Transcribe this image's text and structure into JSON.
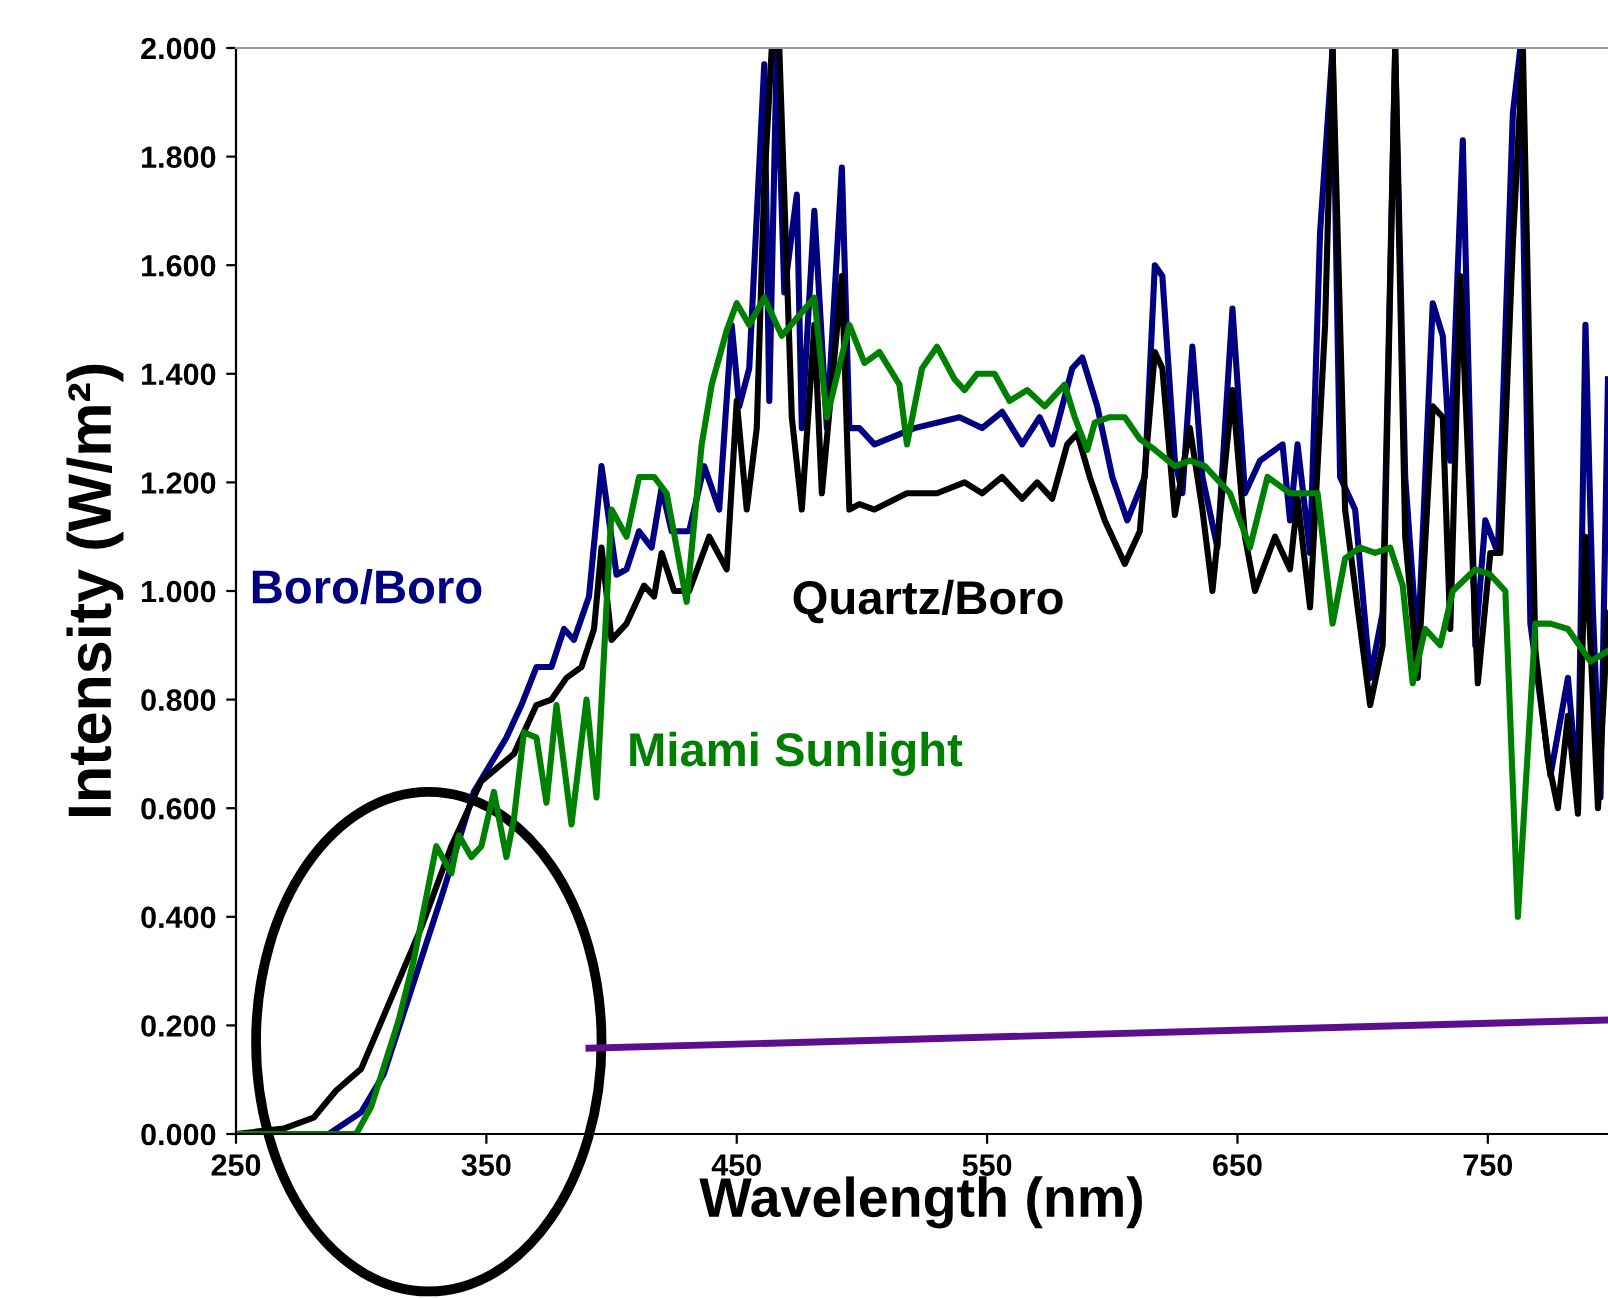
{
  "chart_data": {
    "type": "line",
    "xlabel": "Wavelength (nm)",
    "ylabel": "Intensity (W/m²)",
    "xlim": [
      250,
      798
    ],
    "ylim": [
      0,
      2
    ],
    "xticks": [
      250,
      350,
      450,
      550,
      650,
      750
    ],
    "yticks": [
      {
        "value": 0,
        "label": "0.000"
      },
      {
        "value": 0.2,
        "label": "0.200"
      },
      {
        "value": 0.4,
        "label": "0.400"
      },
      {
        "value": 0.6,
        "label": "0.600"
      },
      {
        "value": 0.8,
        "label": "0.800"
      },
      {
        "value": 1.0,
        "label": "1.000"
      },
      {
        "value": 1.2,
        "label": "1.200"
      },
      {
        "value": 1.4,
        "label": "1.400"
      },
      {
        "value": 1.6,
        "label": "1.600"
      },
      {
        "value": 1.8,
        "label": "1.800"
      },
      {
        "value": 2.0,
        "label": "2.000"
      }
    ],
    "grid": false,
    "legend": false,
    "marker": "none",
    "line_style": "solid",
    "series": [
      {
        "name": "Boro/Boro",
        "color": "#000080",
        "x": [
          250,
          287,
          300,
          309,
          321,
          333,
          345,
          358,
          364,
          370,
          376,
          381,
          385,
          391,
          396,
          399,
          402,
          406,
          411,
          416,
          420,
          424,
          431,
          437,
          443,
          448,
          451,
          455,
          461,
          463,
          466,
          469,
          474,
          476,
          481,
          486,
          492,
          495,
          499,
          505,
          521,
          539,
          548,
          556,
          564,
          571,
          576,
          584,
          588,
          594,
          600,
          606,
          613,
          617,
          620,
          625,
          628,
          632,
          636,
          642,
          648,
          653,
          659,
          668,
          671,
          674,
          679,
          683,
          688,
          691,
          697,
          703,
          708,
          713,
          717,
          722,
          728,
          732,
          735,
          740,
          745,
          749,
          754,
          760,
          763,
          767,
          775,
          782,
          786,
          789,
          792,
          795,
          798
        ],
        "values": [
          0,
          0,
          0.04,
          0.11,
          0.28,
          0.45,
          0.63,
          0.73,
          0.79,
          0.86,
          0.86,
          0.93,
          0.91,
          0.99,
          1.23,
          1.13,
          1.03,
          1.04,
          1.11,
          1.08,
          1.19,
          1.11,
          1.11,
          1.23,
          1.15,
          1.49,
          1.34,
          1.41,
          1.97,
          1.35,
          2.0,
          1.55,
          1.73,
          1.3,
          1.7,
          1.3,
          1.78,
          1.3,
          1.3,
          1.27,
          1.3,
          1.32,
          1.3,
          1.33,
          1.27,
          1.32,
          1.27,
          1.41,
          1.43,
          1.34,
          1.21,
          1.13,
          1.21,
          1.6,
          1.58,
          1.24,
          1.18,
          1.45,
          1.21,
          1.08,
          1.52,
          1.18,
          1.24,
          1.27,
          1.13,
          1.27,
          1.07,
          1.66,
          2.0,
          1.21,
          1.15,
          0.84,
          0.96,
          2.0,
          1.21,
          0.89,
          1.53,
          1.47,
          1.24,
          1.83,
          0.9,
          1.13,
          1.07,
          1.88,
          2.0,
          0.94,
          0.66,
          0.84,
          0.63,
          1.49,
          0.96,
          0.62,
          1.39
        ]
      },
      {
        "name": "Quartz/Boro",
        "color": "#000000",
        "x": [
          250,
          269,
          281,
          290,
          300,
          312,
          324,
          336,
          348,
          361,
          370,
          376,
          382,
          388,
          393,
          396,
          400,
          406,
          413,
          417,
          420,
          425,
          431,
          439,
          446,
          450,
          454,
          458,
          461,
          464,
          467,
          472,
          476,
          481,
          484,
          492,
          495,
          499,
          505,
          518,
          530,
          541,
          548,
          556,
          564,
          570,
          576,
          582,
          586,
          591,
          597,
          605,
          611,
          617,
          620,
          625,
          631,
          636,
          640,
          648,
          653,
          657,
          665,
          671,
          674,
          679,
          685,
          688,
          693,
          703,
          708,
          713,
          717,
          722,
          728,
          732,
          735,
          739,
          746,
          751,
          755,
          760,
          764,
          769,
          774,
          778,
          782,
          786,
          789,
          794,
          798
        ],
        "values": [
          0,
          0.01,
          0.03,
          0.08,
          0.12,
          0.25,
          0.38,
          0.53,
          0.65,
          0.7,
          0.79,
          0.8,
          0.84,
          0.86,
          0.93,
          1.08,
          0.91,
          0.94,
          1.01,
          0.99,
          1.07,
          1.0,
          1.0,
          1.1,
          1.04,
          1.35,
          1.15,
          1.3,
          1.75,
          2.0,
          2.0,
          1.32,
          1.15,
          1.49,
          1.18,
          1.58,
          1.15,
          1.16,
          1.15,
          1.18,
          1.18,
          1.2,
          1.18,
          1.21,
          1.17,
          1.2,
          1.17,
          1.27,
          1.29,
          1.21,
          1.13,
          1.05,
          1.11,
          1.44,
          1.41,
          1.14,
          1.3,
          1.15,
          1.0,
          1.37,
          1.1,
          1.0,
          1.1,
          1.04,
          1.17,
          0.97,
          1.49,
          2.0,
          1.15,
          0.79,
          0.9,
          2.0,
          1.1,
          0.84,
          1.34,
          1.32,
          0.93,
          1.58,
          0.83,
          1.07,
          1.07,
          1.64,
          2.0,
          0.89,
          0.69,
          0.6,
          0.77,
          0.59,
          1.1,
          0.6,
          0.96
        ]
      },
      {
        "name": "Miami Sunlight",
        "color": "#008000",
        "x": [
          250,
          298,
          304,
          315,
          321,
          327,
          330,
          336,
          339,
          344,
          348,
          353,
          358,
          361,
          365,
          370,
          374,
          378,
          384,
          390,
          394,
          400,
          406,
          411,
          417,
          422,
          430,
          436,
          440,
          446,
          450,
          455,
          461,
          468,
          481,
          486,
          495,
          501,
          507,
          515,
          518,
          524,
          530,
          537,
          541,
          546,
          553,
          559,
          566,
          573,
          581,
          585,
          590,
          593,
          599,
          605,
          611,
          617,
          625,
          631,
          637,
          647,
          655,
          662,
          671,
          682,
          688,
          693,
          699,
          705,
          711,
          716,
          720,
          725,
          731,
          736,
          745,
          751,
          757,
          762,
          769,
          775,
          782,
          791,
          798
        ],
        "values": [
          0,
          0,
          0.05,
          0.21,
          0.32,
          0.46,
          0.53,
          0.48,
          0.55,
          0.51,
          0.53,
          0.63,
          0.51,
          0.58,
          0.74,
          0.73,
          0.61,
          0.79,
          0.57,
          0.8,
          0.62,
          1.15,
          1.1,
          1.21,
          1.21,
          1.18,
          0.98,
          1.27,
          1.38,
          1.48,
          1.53,
          1.49,
          1.54,
          1.47,
          1.54,
          1.32,
          1.49,
          1.42,
          1.44,
          1.38,
          1.27,
          1.41,
          1.45,
          1.39,
          1.37,
          1.4,
          1.4,
          1.35,
          1.37,
          1.34,
          1.38,
          1.32,
          1.26,
          1.31,
          1.32,
          1.32,
          1.28,
          1.26,
          1.23,
          1.24,
          1.23,
          1.18,
          1.08,
          1.21,
          1.18,
          1.18,
          0.94,
          1.06,
          1.08,
          1.07,
          1.08,
          1.01,
          0.83,
          0.93,
          0.9,
          1.0,
          1.04,
          1.03,
          1.0,
          0.4,
          0.94,
          0.94,
          0.93,
          0.87,
          0.89
        ]
      },
      {
        "color": "#5b0f8f",
        "x": [
          391,
          798
        ],
        "values": [
          0.158,
          0.21
        ]
      }
    ]
  }
}
